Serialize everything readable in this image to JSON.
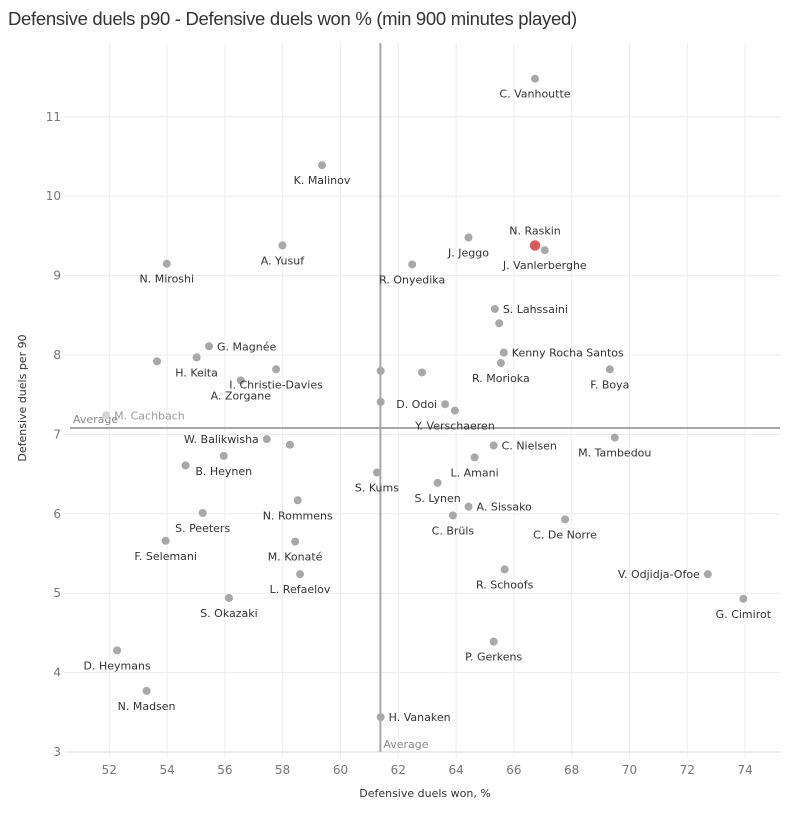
{
  "title": "Defensive duels p90 - Defensive duels won % (min 900 minutes played)",
  "chart_data": {
    "type": "scatter",
    "title": "Defensive duels p90 - Defensive duels won % (min 900 minutes played)",
    "xlabel": "Defensive duels won, %",
    "ylabel": "Defensive duels per 90",
    "xlim": [
      50.9,
      75.3
    ],
    "ylim": [
      2.9,
      11.95
    ],
    "xticks": [
      52,
      54,
      56,
      58,
      60,
      62,
      64,
      66,
      68,
      70,
      72,
      74
    ],
    "yticks": [
      3,
      4,
      5,
      6,
      7,
      8,
      9,
      10,
      11
    ],
    "grid": true,
    "reference_lines": {
      "x_average": {
        "value": 61.38,
        "label": "Average"
      },
      "y_average": {
        "value": 7.08,
        "label": "Average"
      }
    },
    "colors": {
      "default": "#a8a8a8",
      "highlight": "#e15759",
      "faded": "#d4d4d4",
      "reference": "#a6a6a6",
      "grid": "#ececec"
    },
    "points": [
      {
        "name": "C. Vanhoutte",
        "x": 66.73,
        "y": 11.48,
        "label_pos": "below"
      },
      {
        "name": "K. Malinov",
        "x": 59.36,
        "y": 10.39,
        "label_pos": "below"
      },
      {
        "name": "N. Raskin",
        "x": 66.73,
        "y": 9.38,
        "label_pos": "above",
        "highlight": true
      },
      {
        "name": "J. Vanlerberghe",
        "x": 67.07,
        "y": 9.32,
        "label_pos": "below"
      },
      {
        "name": "J. Jeggo",
        "x": 64.43,
        "y": 9.48,
        "label_pos": "below"
      },
      {
        "name": "A. Yusuf",
        "x": 57.99,
        "y": 9.38,
        "label_pos": "below"
      },
      {
        "name": "N. Miroshi",
        "x": 53.99,
        "y": 9.15,
        "label_pos": "below"
      },
      {
        "name": "R. Onyedika",
        "x": 62.48,
        "y": 9.14,
        "label_pos": "below"
      },
      {
        "name": "S. Lahssaini",
        "x": 65.34,
        "y": 8.58,
        "label_pos": "right"
      },
      {
        "name": "",
        "x": 65.49,
        "y": 8.4,
        "label_pos": "none"
      },
      {
        "name": "Kenny Rocha Santos",
        "x": 65.65,
        "y": 8.03,
        "label_pos": "right"
      },
      {
        "name": "R. Morioka",
        "x": 65.55,
        "y": 7.9,
        "label_pos": "below"
      },
      {
        "name": "F. Boya",
        "x": 69.32,
        "y": 7.82,
        "label_pos": "below"
      },
      {
        "name": "G. Magnée",
        "x": 55.45,
        "y": 8.11,
        "label_pos": "right"
      },
      {
        "name": "H. Keita",
        "x": 55.02,
        "y": 7.97,
        "label_pos": "below"
      },
      {
        "name": "",
        "x": 53.65,
        "y": 7.92,
        "label_pos": "none"
      },
      {
        "name": "A. Zorgane",
        "x": 56.55,
        "y": 7.68,
        "label_pos": "below"
      },
      {
        "name": "I. Christie-Davies",
        "x": 57.77,
        "y": 7.82,
        "label_pos": "below"
      },
      {
        "name": "",
        "x": 61.39,
        "y": 7.8,
        "label_pos": "none"
      },
      {
        "name": "",
        "x": 62.82,
        "y": 7.78,
        "label_pos": "none"
      },
      {
        "name": "",
        "x": 61.39,
        "y": 7.41,
        "label_pos": "none"
      },
      {
        "name": "D. Odoi",
        "x": 63.62,
        "y": 7.38,
        "label_pos": "left"
      },
      {
        "name": "Y. Verschaeren",
        "x": 63.96,
        "y": 7.3,
        "label_pos": "below"
      },
      {
        "name": "M. Cachbach",
        "x": 51.89,
        "y": 7.24,
        "label_pos": "right",
        "faded": true
      },
      {
        "name": "W. Balikwisha",
        "x": 57.45,
        "y": 6.94,
        "label_pos": "left"
      },
      {
        "name": "",
        "x": 58.25,
        "y": 6.87,
        "label_pos": "none"
      },
      {
        "name": "C. Nielsen",
        "x": 65.3,
        "y": 6.86,
        "label_pos": "right"
      },
      {
        "name": "M. Tambedou",
        "x": 69.49,
        "y": 6.96,
        "label_pos": "below"
      },
      {
        "name": "L. Amani",
        "x": 64.64,
        "y": 6.71,
        "label_pos": "below"
      },
      {
        "name": "B. Heynen",
        "x": 55.96,
        "y": 6.73,
        "label_pos": "below"
      },
      {
        "name": "",
        "x": 54.64,
        "y": 6.61,
        "label_pos": "none"
      },
      {
        "name": "S. Kums",
        "x": 61.26,
        "y": 6.52,
        "label_pos": "below"
      },
      {
        "name": "S. Lynen",
        "x": 63.36,
        "y": 6.39,
        "label_pos": "below"
      },
      {
        "name": "A. Sissako",
        "x": 64.43,
        "y": 6.09,
        "label_pos": "right"
      },
      {
        "name": "N. Rommens",
        "x": 58.52,
        "y": 6.17,
        "label_pos": "below"
      },
      {
        "name": "S. Peeters",
        "x": 55.23,
        "y": 6.01,
        "label_pos": "below"
      },
      {
        "name": "C. Brüls",
        "x": 63.89,
        "y": 5.98,
        "label_pos": "below"
      },
      {
        "name": "C. De Norre",
        "x": 67.77,
        "y": 5.93,
        "label_pos": "below"
      },
      {
        "name": "F. Selemani",
        "x": 53.95,
        "y": 5.66,
        "label_pos": "below"
      },
      {
        "name": "M. Konaté",
        "x": 58.43,
        "y": 5.65,
        "label_pos": "below"
      },
      {
        "name": "R. Schoofs",
        "x": 65.68,
        "y": 5.3,
        "label_pos": "below"
      },
      {
        "name": "V. Odjidja-Ofoe",
        "x": 72.71,
        "y": 5.24,
        "label_pos": "left"
      },
      {
        "name": "L. Refaelov",
        "x": 58.6,
        "y": 5.24,
        "label_pos": "below"
      },
      {
        "name": "S. Okazaki",
        "x": 56.14,
        "y": 4.94,
        "label_pos": "below"
      },
      {
        "name": "G. Cimirot",
        "x": 73.94,
        "y": 4.93,
        "label_pos": "below"
      },
      {
        "name": "P. Gerkens",
        "x": 65.3,
        "y": 4.39,
        "label_pos": "below"
      },
      {
        "name": "D. Heymans",
        "x": 52.27,
        "y": 4.28,
        "label_pos": "below"
      },
      {
        "name": "N. Madsen",
        "x": 53.29,
        "y": 3.77,
        "label_pos": "below"
      },
      {
        "name": "H. Vanaken",
        "x": 61.39,
        "y": 3.44,
        "label_pos": "right"
      }
    ]
  }
}
